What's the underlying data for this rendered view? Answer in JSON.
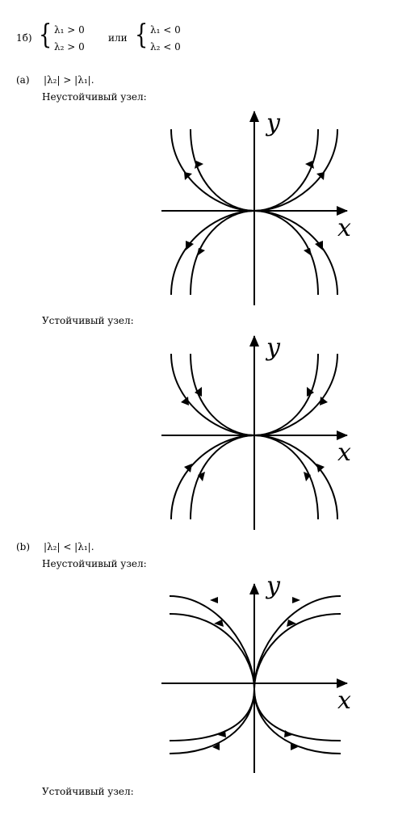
{
  "problem": {
    "number": "1б)",
    "system1": [
      "λ₁ > 0",
      "λ₂ > 0"
    ],
    "connector": "или",
    "system2": [
      "λ₁ < 0",
      "λ₂ < 0"
    ]
  },
  "case_a": {
    "label": "(a)",
    "condition": "|λ₂| > |λ₁|.",
    "unstable_title": "Неустойчивый узел:",
    "stable_title": "Устойчивый узел:"
  },
  "case_b": {
    "label": "(b)",
    "condition": "|λ₂| < |λ₁|.",
    "unstable_title": "Неустойчивый узел:",
    "stable_title": "Устойчивый узел:"
  },
  "axes": {
    "x": "x",
    "y": "y"
  }
}
